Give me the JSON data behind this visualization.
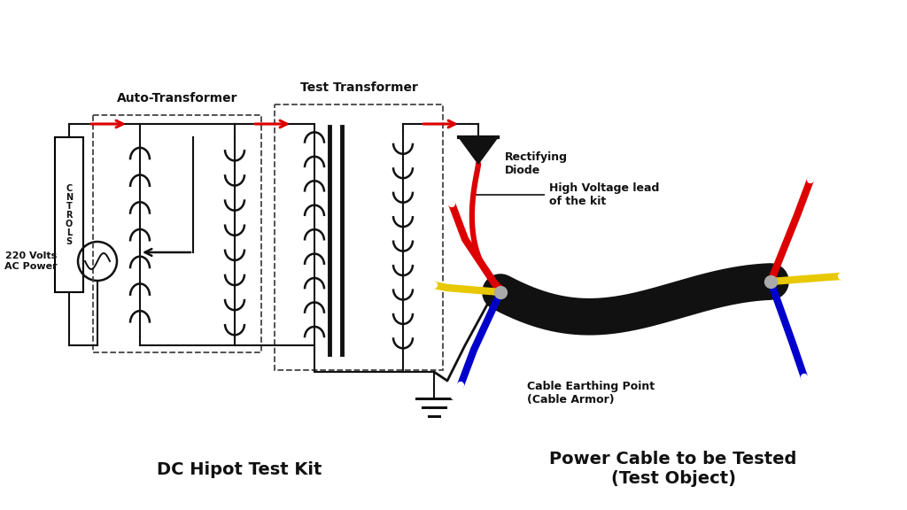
{
  "bg_color": "#ffffff",
  "label_auto_transformer": "Auto-Transformer",
  "label_test_transformer": "Test Transformer",
  "label_rectifying_diode": "Rectifying\nDiode",
  "label_hv_lead": "High Voltage lead\nof the kit",
  "label_cable_earthing": "Cable Earthing Point\n(Cable Armor)",
  "label_dc_hipot": "DC Hipot Test Kit",
  "label_power_cable": "Power Cable to be Tested\n(Test Object)",
  "label_220v": "220 Volts\nAC Power",
  "label_controls": "C\nN\nT\nR\nO\nL\nS",
  "wire_red": "#dd0000",
  "wire_yellow": "#e8c800",
  "wire_blue": "#0000cc",
  "wire_black": "#111111",
  "text_color": "#000000"
}
